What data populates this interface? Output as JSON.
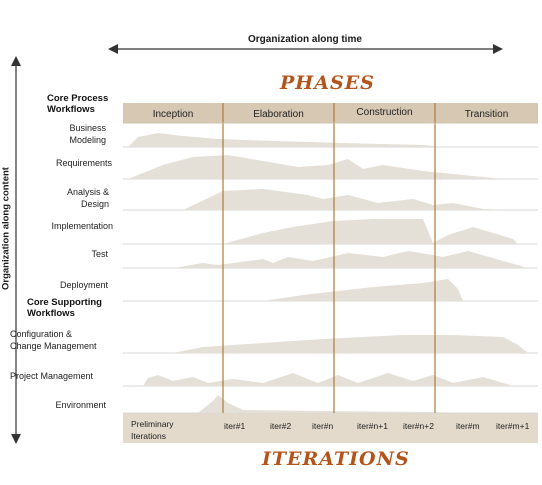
{
  "axes": {
    "time_label": "Organization along time",
    "content_label": "Organization along content"
  },
  "phases_title": "PHASES",
  "iterations_title": "ITERATIONS",
  "phases": [
    "Inception",
    "Elaboration",
    "Construction",
    "Transition"
  ],
  "sections": {
    "core_process": "Core Process\nWorkflows",
    "core_supporting": "Core Supporting\nWorkflows"
  },
  "workflows": [
    "Business\nModeling",
    "Requirements",
    "Analysis &\nDesign",
    "Implementation",
    "Test",
    "Deployment",
    "Configuration &\nChange Management",
    "Project Management",
    "Environment"
  ],
  "iterations": [
    "Preliminary\nIterations",
    "iter#1",
    "iter#2",
    "iter#n",
    "iter#n+1",
    "iter#n+2",
    "iter#m",
    "iter#m+1"
  ],
  "colors": {
    "header_bg": "#d6c8b3",
    "footer_bg": "#e3dacb",
    "divider": "#b07a3a",
    "hump": "#e4dfd7",
    "row_line": "#d7d7d7",
    "accent": "#b4531a"
  }
}
